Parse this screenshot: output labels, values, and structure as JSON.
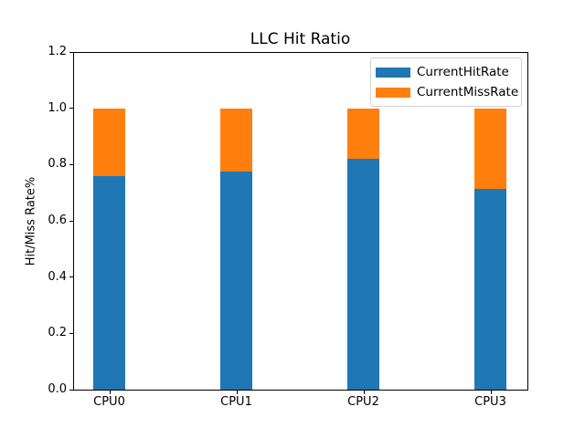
{
  "chart_data": {
    "type": "bar",
    "stacked": true,
    "title": "LLC Hit Ratio",
    "xlabel": "",
    "ylabel": "Hit/Miss Rate%",
    "categories": [
      "CPU0",
      "CPU1",
      "CPU2",
      "CPU3"
    ],
    "series": [
      {
        "name": "CurrentHitRate",
        "color": "#1f77b4",
        "values": [
          0.76,
          0.775,
          0.82,
          0.715
        ]
      },
      {
        "name": "CurrentMissRate",
        "color": "#ff7f0e",
        "values": [
          0.24,
          0.225,
          0.18,
          0.285
        ]
      }
    ],
    "ylim": [
      0.0,
      1.2
    ],
    "ytick_labels": [
      "0.0",
      "0.2",
      "0.4",
      "0.6",
      "0.8",
      "1.0",
      "1.2"
    ],
    "yticks": [
      0.0,
      0.2,
      0.4,
      0.6,
      0.8,
      1.0,
      1.2
    ],
    "legend_position": "upper right",
    "grid": false,
    "axis_color": "#000000",
    "background_color": "#ffffff"
  }
}
